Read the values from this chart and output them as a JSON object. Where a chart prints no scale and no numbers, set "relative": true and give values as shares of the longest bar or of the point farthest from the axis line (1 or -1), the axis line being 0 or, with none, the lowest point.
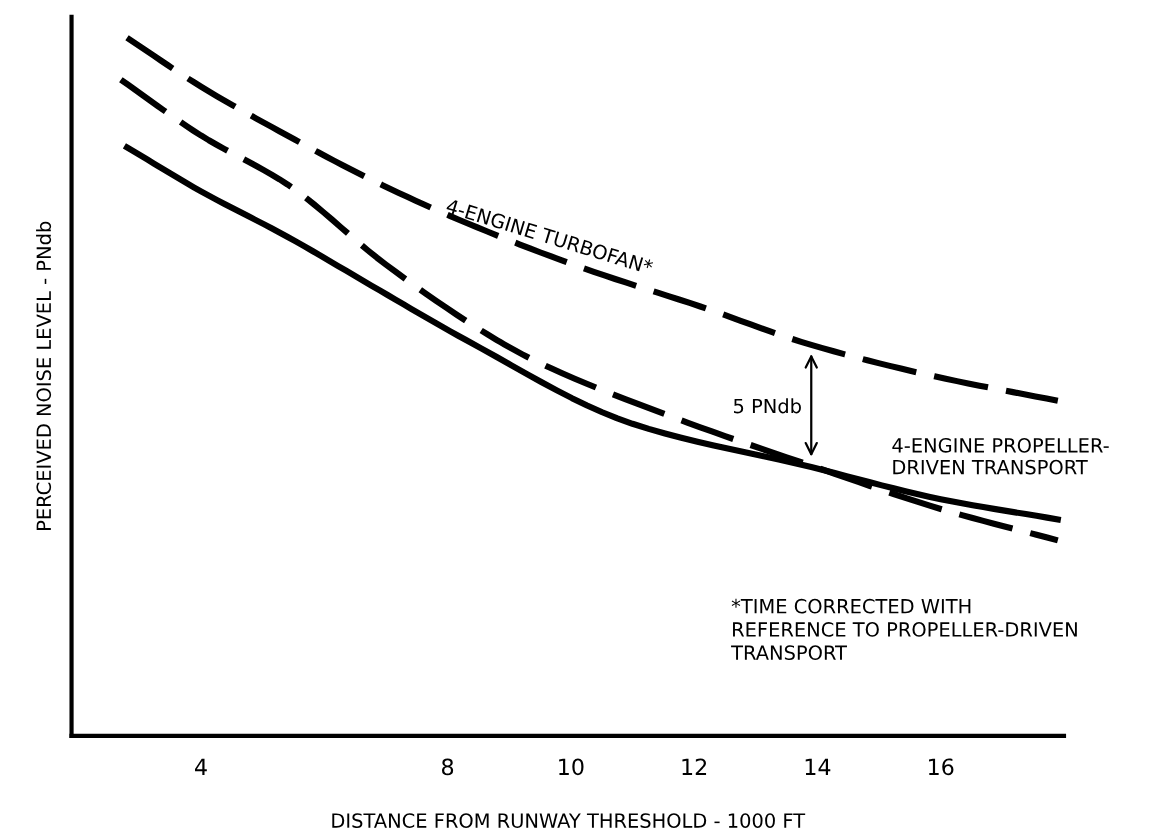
{
  "chart_data": {
    "type": "line",
    "relative": true,
    "xlabel": "DISTANCE FROM RUNWAY THRESHOLD - 1000 FT",
    "ylabel": "PERCEIVED NOISE LEVEL - PNdb",
    "xlim": [
      1.9,
      18
    ],
    "xticks": [
      4,
      8,
      10,
      12,
      14,
      16
    ],
    "grid": false,
    "legend": false,
    "marker": "none",
    "series": [
      {
        "name": "4-ENGINE TURBOFAN*",
        "color": "#000000",
        "line_style": "dashed",
        "x": [
          2.8,
          4,
          5.4,
          6.8,
          8.3,
          10.2,
          12.1,
          13.9,
          15.9,
          17.9
        ],
        "values": [
          1.0,
          0.93,
          0.86,
          0.795,
          0.735,
          0.67,
          0.615,
          0.56,
          0.515,
          0.48
        ]
      },
      {
        "color": "#000000",
        "line_style": "dashed",
        "x": [
          2.7,
          4,
          5.4,
          7,
          8.8,
          9.45,
          11.7,
          13.9,
          16.0,
          17.9
        ],
        "values": [
          0.94,
          0.86,
          0.79,
          0.675,
          0.567,
          0.536,
          0.455,
          0.387,
          0.325,
          0.28
        ]
      },
      {
        "name": "4-ENGINE PROPELLER-\nDRIVEN TRANSPORT",
        "color": "#000000",
        "line_style": "solid",
        "x": [
          2.8,
          4,
          5.4,
          6.9,
          8.3,
          11.0,
          13.9,
          16.0,
          17.9
        ],
        "values": [
          0.843,
          0.78,
          0.715,
          0.638,
          0.567,
          0.447,
          0.385,
          0.339,
          0.31
        ]
      }
    ],
    "annotations": [
      "5 PNdb",
      "*TIME CORRECTED WITH\nREFERENCE TO PROPELLER-DRIVEN\nTRANSPORT"
    ]
  }
}
